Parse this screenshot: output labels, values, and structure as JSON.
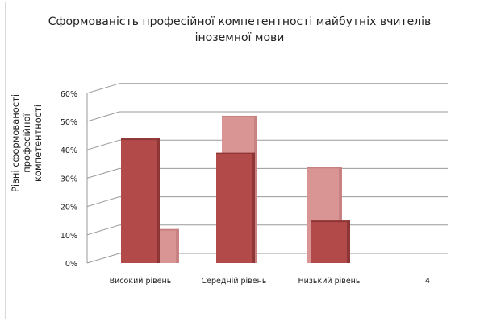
{
  "chart_data": {
    "type": "bar",
    "title": "Сформованість професійної компетентності майбутніх вчителів\nіноземної мови",
    "xlabel": "",
    "ylabel": "Рівні сформованості\nпрофесійної компетентності",
    "categories": [
      "Високий рівень",
      "Середній рівень",
      "Низький рівень",
      "4"
    ],
    "series": [
      {
        "values": [
          0.44,
          0.39,
          0.15,
          null
        ],
        "color": "#b34a4a"
      },
      {
        "values": [
          0.12,
          0.52,
          0.34,
          null
        ],
        "color": "#d99494"
      }
    ],
    "ylim": [
      0,
      0.6
    ],
    "yticks": [
      "0%",
      "10%",
      "20%",
      "30%",
      "40%",
      "50%",
      "60%"
    ],
    "grid": true,
    "legend": "none"
  }
}
